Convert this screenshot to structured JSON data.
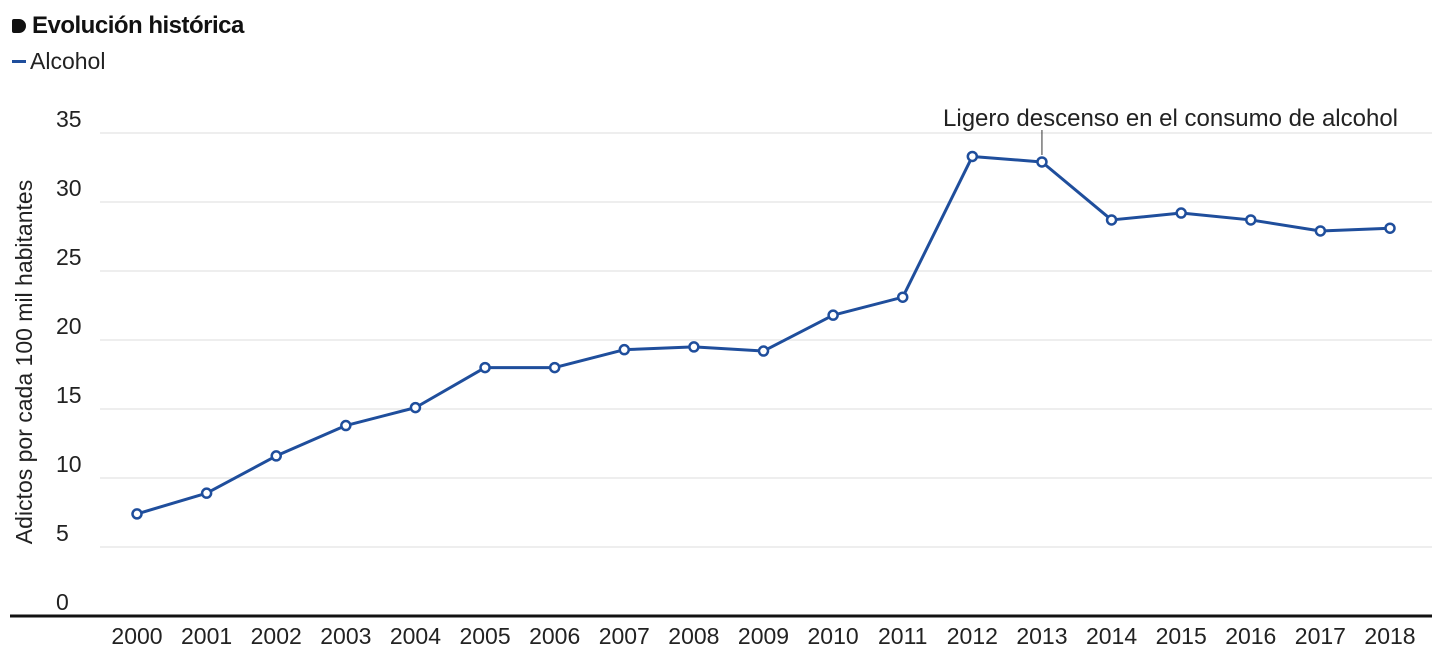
{
  "title": "Evolución histórica",
  "legend": {
    "items": [
      {
        "label": "Alcohol",
        "color": "#1f4e9c"
      }
    ]
  },
  "chart_data": {
    "type": "line",
    "title": "Evolución histórica",
    "xlabel": "",
    "ylabel": "Adictos por cada 100 mil habitantes",
    "categories": [
      "2000",
      "2001",
      "2002",
      "2003",
      "2004",
      "2005",
      "2006",
      "2007",
      "2008",
      "2009",
      "2010",
      "2011",
      "2012",
      "2013",
      "2014",
      "2015",
      "2016",
      "2017",
      "2018"
    ],
    "series": [
      {
        "name": "Alcohol",
        "color": "#1f4e9c",
        "values": [
          7.4,
          8.9,
          11.6,
          13.8,
          15.1,
          18.0,
          18.0,
          19.3,
          19.5,
          19.2,
          21.8,
          23.1,
          33.3,
          32.9,
          28.7,
          29.2,
          28.7,
          27.9,
          28.1
        ]
      }
    ],
    "ylim": [
      0,
      35
    ],
    "yticks": [
      0,
      5,
      10,
      15,
      20,
      25,
      30,
      35
    ],
    "grid": true,
    "legend_position": "top-left",
    "annotations": [
      {
        "x": "2013",
        "text": "Ligero descenso en el consumo de alcohol"
      }
    ]
  }
}
